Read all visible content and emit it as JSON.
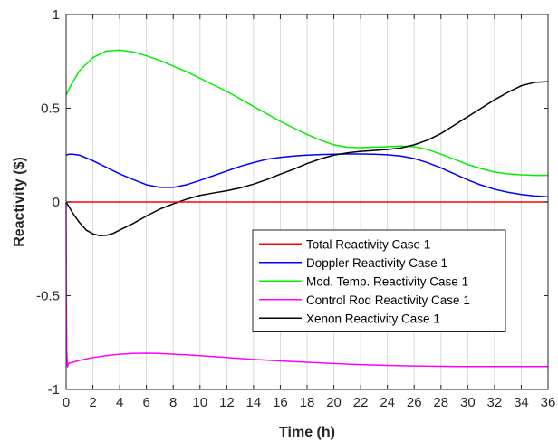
{
  "chart_data": {
    "type": "line",
    "title": "",
    "xlabel": "Time (h)",
    "ylabel": "Reactivity ($)",
    "xlim": [
      0,
      36
    ],
    "ylim": [
      -1,
      1
    ],
    "xticks": [
      "0",
      "2",
      "4",
      "6",
      "8",
      "10",
      "12",
      "14",
      "16",
      "18",
      "20",
      "22",
      "24",
      "26",
      "28",
      "30",
      "32",
      "34",
      "36"
    ],
    "yticks": [
      "-1",
      "-0.5",
      "0",
      "0.5",
      "1"
    ],
    "grid": "vertical lines only",
    "legend_position": "lower-right",
    "series": [
      {
        "name": "Total Reactivity Case 1",
        "color": "#ff0000",
        "x": [
          0,
          36
        ],
        "y": [
          0,
          0
        ]
      },
      {
        "name": "Doppler Reactivity Case 1",
        "color": "#0000ff",
        "x": [
          0,
          0.2,
          0.5,
          1,
          2,
          3,
          4,
          5,
          6,
          7,
          8,
          9,
          10,
          11,
          12,
          13,
          14,
          15,
          16,
          17,
          18,
          19,
          20,
          21,
          22,
          23,
          24,
          25,
          26,
          27,
          28,
          29,
          30,
          31,
          32,
          33,
          34,
          35,
          36
        ],
        "y": [
          0.25,
          0.255,
          0.255,
          0.25,
          0.22,
          0.185,
          0.15,
          0.12,
          0.092,
          0.078,
          0.078,
          0.092,
          0.115,
          0.14,
          0.165,
          0.19,
          0.21,
          0.228,
          0.238,
          0.245,
          0.25,
          0.253,
          0.255,
          0.256,
          0.256,
          0.255,
          0.252,
          0.245,
          0.232,
          0.21,
          0.182,
          0.15,
          0.118,
          0.09,
          0.068,
          0.052,
          0.04,
          0.032,
          0.028
        ]
      },
      {
        "name": "Mod. Temp. Reactivity Case 1",
        "color": "#00ee00",
        "x": [
          0,
          0.2,
          0.5,
          1,
          2,
          3,
          4,
          5,
          6,
          7,
          8,
          9,
          10,
          11,
          12,
          13,
          14,
          15,
          16,
          17,
          18,
          19,
          20,
          21,
          22,
          23,
          24,
          25,
          26,
          27,
          28,
          29,
          30,
          31,
          32,
          33,
          34,
          35,
          36
        ],
        "y": [
          0.57,
          0.6,
          0.64,
          0.7,
          0.77,
          0.805,
          0.81,
          0.8,
          0.78,
          0.755,
          0.725,
          0.695,
          0.66,
          0.625,
          0.59,
          0.55,
          0.51,
          0.47,
          0.43,
          0.395,
          0.36,
          0.33,
          0.305,
          0.292,
          0.29,
          0.292,
          0.295,
          0.298,
          0.295,
          0.28,
          0.255,
          0.228,
          0.2,
          0.178,
          0.16,
          0.15,
          0.145,
          0.142,
          0.142
        ]
      },
      {
        "name": "Control Rod Reactivity Case 1",
        "color": "#ff00ff",
        "x": [
          0,
          0.02,
          0.05,
          0.1,
          0.2,
          0.5,
          1,
          2,
          3,
          4,
          5,
          6,
          7,
          8,
          9,
          10,
          12,
          14,
          16,
          18,
          20,
          22,
          24,
          26,
          28,
          30,
          32,
          34,
          36
        ],
        "y": [
          0,
          -0.5,
          -0.8,
          -0.88,
          -0.86,
          -0.855,
          -0.845,
          -0.83,
          -0.82,
          -0.812,
          -0.808,
          -0.807,
          -0.808,
          -0.812,
          -0.815,
          -0.82,
          -0.83,
          -0.84,
          -0.848,
          -0.855,
          -0.862,
          -0.868,
          -0.872,
          -0.875,
          -0.877,
          -0.878,
          -0.878,
          -0.878,
          -0.878
        ]
      },
      {
        "name": "Xenon Reactivity Case 1",
        "color": "#000000",
        "x": [
          0,
          0.5,
          1,
          1.5,
          2,
          2.5,
          3,
          3.5,
          4,
          5,
          6,
          7,
          8,
          9,
          10,
          11,
          12,
          13,
          14,
          15,
          16,
          17,
          18,
          19,
          20,
          21,
          22,
          23,
          24,
          25,
          26,
          27,
          28,
          29,
          30,
          31,
          32,
          33,
          34,
          35,
          36
        ],
        "y": [
          0,
          -0.06,
          -0.11,
          -0.15,
          -0.17,
          -0.18,
          -0.178,
          -0.168,
          -0.15,
          -0.115,
          -0.075,
          -0.038,
          -0.01,
          0.015,
          0.035,
          0.048,
          0.06,
          0.075,
          0.095,
          0.12,
          0.148,
          0.175,
          0.205,
          0.23,
          0.25,
          0.262,
          0.27,
          0.275,
          0.28,
          0.288,
          0.305,
          0.33,
          0.365,
          0.41,
          0.455,
          0.5,
          0.545,
          0.585,
          0.62,
          0.638,
          0.642
        ]
      }
    ]
  }
}
